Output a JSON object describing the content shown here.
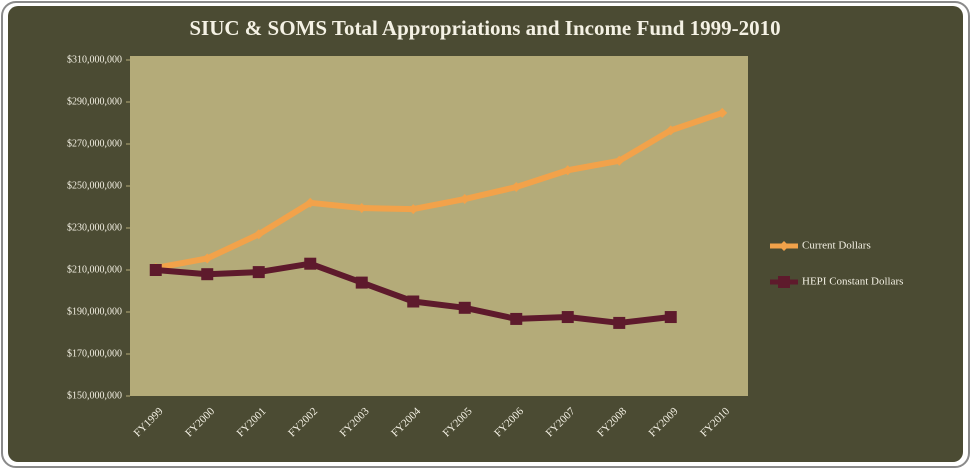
{
  "chart_data": {
    "type": "line",
    "title": "SIUC & SOMS Total Appropriations and Income Fund 1999-2010",
    "categories": [
      "FY1999",
      "FY2000",
      "FY2001",
      "FY2002",
      "FY2003",
      "FY2004",
      "FY2005",
      "FY2006",
      "FY2007",
      "FY2008",
      "FY2009",
      "FY2010"
    ],
    "series": [
      {
        "name": "Current Dollars",
        "color": "#f2a24a",
        "marker": "diamond",
        "values": [
          211000000,
          215500000,
          227000000,
          242000000,
          239500000,
          239000000,
          243800000,
          249500000,
          257500000,
          262000000,
          276500000,
          284800000
        ]
      },
      {
        "name": "HEPI Constant Dollars",
        "color": "#5e1a2c",
        "marker": "square",
        "values": [
          210000000,
          208000000,
          209000000,
          213000000,
          204000000,
          195000000,
          192000000,
          186700000,
          187600000,
          184800000,
          187600000,
          null
        ]
      }
    ],
    "ylim": [
      150000000,
      310000000
    ],
    "yticks": [
      {
        "value": 150000000,
        "label": "$150,000,000"
      },
      {
        "value": 170000000,
        "label": "$170,000,000"
      },
      {
        "value": 190000000,
        "label": "$190,000,000"
      },
      {
        "value": 210000000,
        "label": "$210,000,000"
      },
      {
        "value": 230000000,
        "label": "$230,000,000"
      },
      {
        "value": 250000000,
        "label": "$250,000,000"
      },
      {
        "value": 270000000,
        "label": "$270,000,000"
      },
      {
        "value": 290000000,
        "label": "$290,000,000"
      },
      {
        "value": 310000000,
        "label": "$310,000,000"
      }
    ],
    "legend": "right"
  }
}
